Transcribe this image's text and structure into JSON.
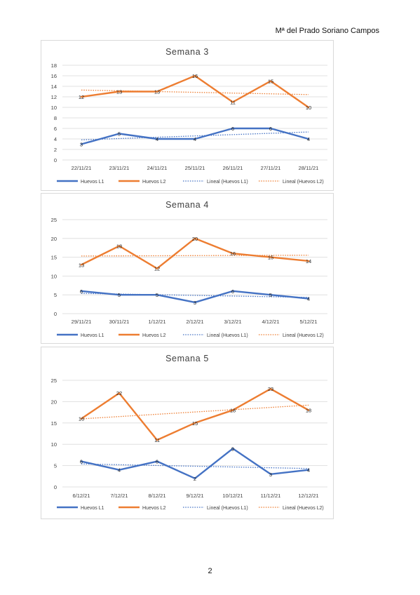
{
  "header": {
    "author": "Mª del Prado Soriano Campos"
  },
  "footer": {
    "page_number": "2"
  },
  "colors": {
    "l1": "#4472c4",
    "l2": "#ed7d31",
    "grid": "#d9d9d9",
    "axis_text": "#404040"
  },
  "legend_labels": [
    "Huevos L1",
    "Huevos L2",
    "Lineal (Huevos L1)",
    "Lineal (Huevos L2)"
  ],
  "chart_data": [
    {
      "type": "line",
      "title": "Semana 3",
      "categories": [
        "22/11/21",
        "23/11/21",
        "24/11/21",
        "25/11/21",
        "26/11/21",
        "27/11/21",
        "28/11/21"
      ],
      "ylim": [
        0,
        18
      ],
      "yticks": [
        0,
        2,
        4,
        6,
        8,
        10,
        12,
        14,
        16,
        18
      ],
      "grid": true,
      "legend_position": "bottom",
      "series": [
        {
          "name": "Huevos L1",
          "values": [
            3,
            5,
            4,
            4,
            6,
            6,
            4
          ],
          "color": "#4472c4",
          "trendline": "Lineal (Huevos L1)"
        },
        {
          "name": "Huevos L2",
          "values": [
            12,
            13,
            13,
            16,
            11,
            15,
            10
          ],
          "color": "#ed7d31",
          "trendline": "Lineal (Huevos L2)"
        }
      ]
    },
    {
      "type": "line",
      "title": "Semana 4",
      "categories": [
        "29/11/21",
        "30/11/21",
        "1/12/21",
        "2/12/21",
        "3/12/21",
        "4/12/21",
        "5/12/21"
      ],
      "ylim": [
        0,
        25
      ],
      "yticks": [
        0,
        5,
        10,
        15,
        20,
        25
      ],
      "grid": true,
      "legend_position": "bottom",
      "series": [
        {
          "name": "Huevos L1",
          "values": [
            6,
            5,
            5,
            3,
            6,
            5,
            4
          ],
          "color": "#4472c4",
          "trendline": "Lineal (Huevos L1)"
        },
        {
          "name": "Huevos L2",
          "values": [
            13,
            18,
            12,
            20,
            16,
            15,
            14
          ],
          "color": "#ed7d31",
          "trendline": "Lineal (Huevos L2)"
        }
      ]
    },
    {
      "type": "line",
      "title": "Semana 5",
      "categories": [
        "6/12/21",
        "7/12/21",
        "8/12/21",
        "9/12/21",
        "10/12/21",
        "11/12/21",
        "12/12/21"
      ],
      "ylim": [
        0,
        25
      ],
      "yticks": [
        0,
        5,
        10,
        15,
        20,
        25
      ],
      "grid": true,
      "legend_position": "bottom",
      "series": [
        {
          "name": "Huevos L1",
          "values": [
            6,
            4,
            6,
            2,
            9,
            3,
            4
          ],
          "color": "#4472c4",
          "trendline": "Lineal (Huevos L1)"
        },
        {
          "name": "Huevos L2",
          "values": [
            16,
            22,
            11,
            15,
            18,
            23,
            18
          ],
          "color": "#ed7d31",
          "trendline": "Lineal (Huevos L2)"
        }
      ]
    }
  ]
}
